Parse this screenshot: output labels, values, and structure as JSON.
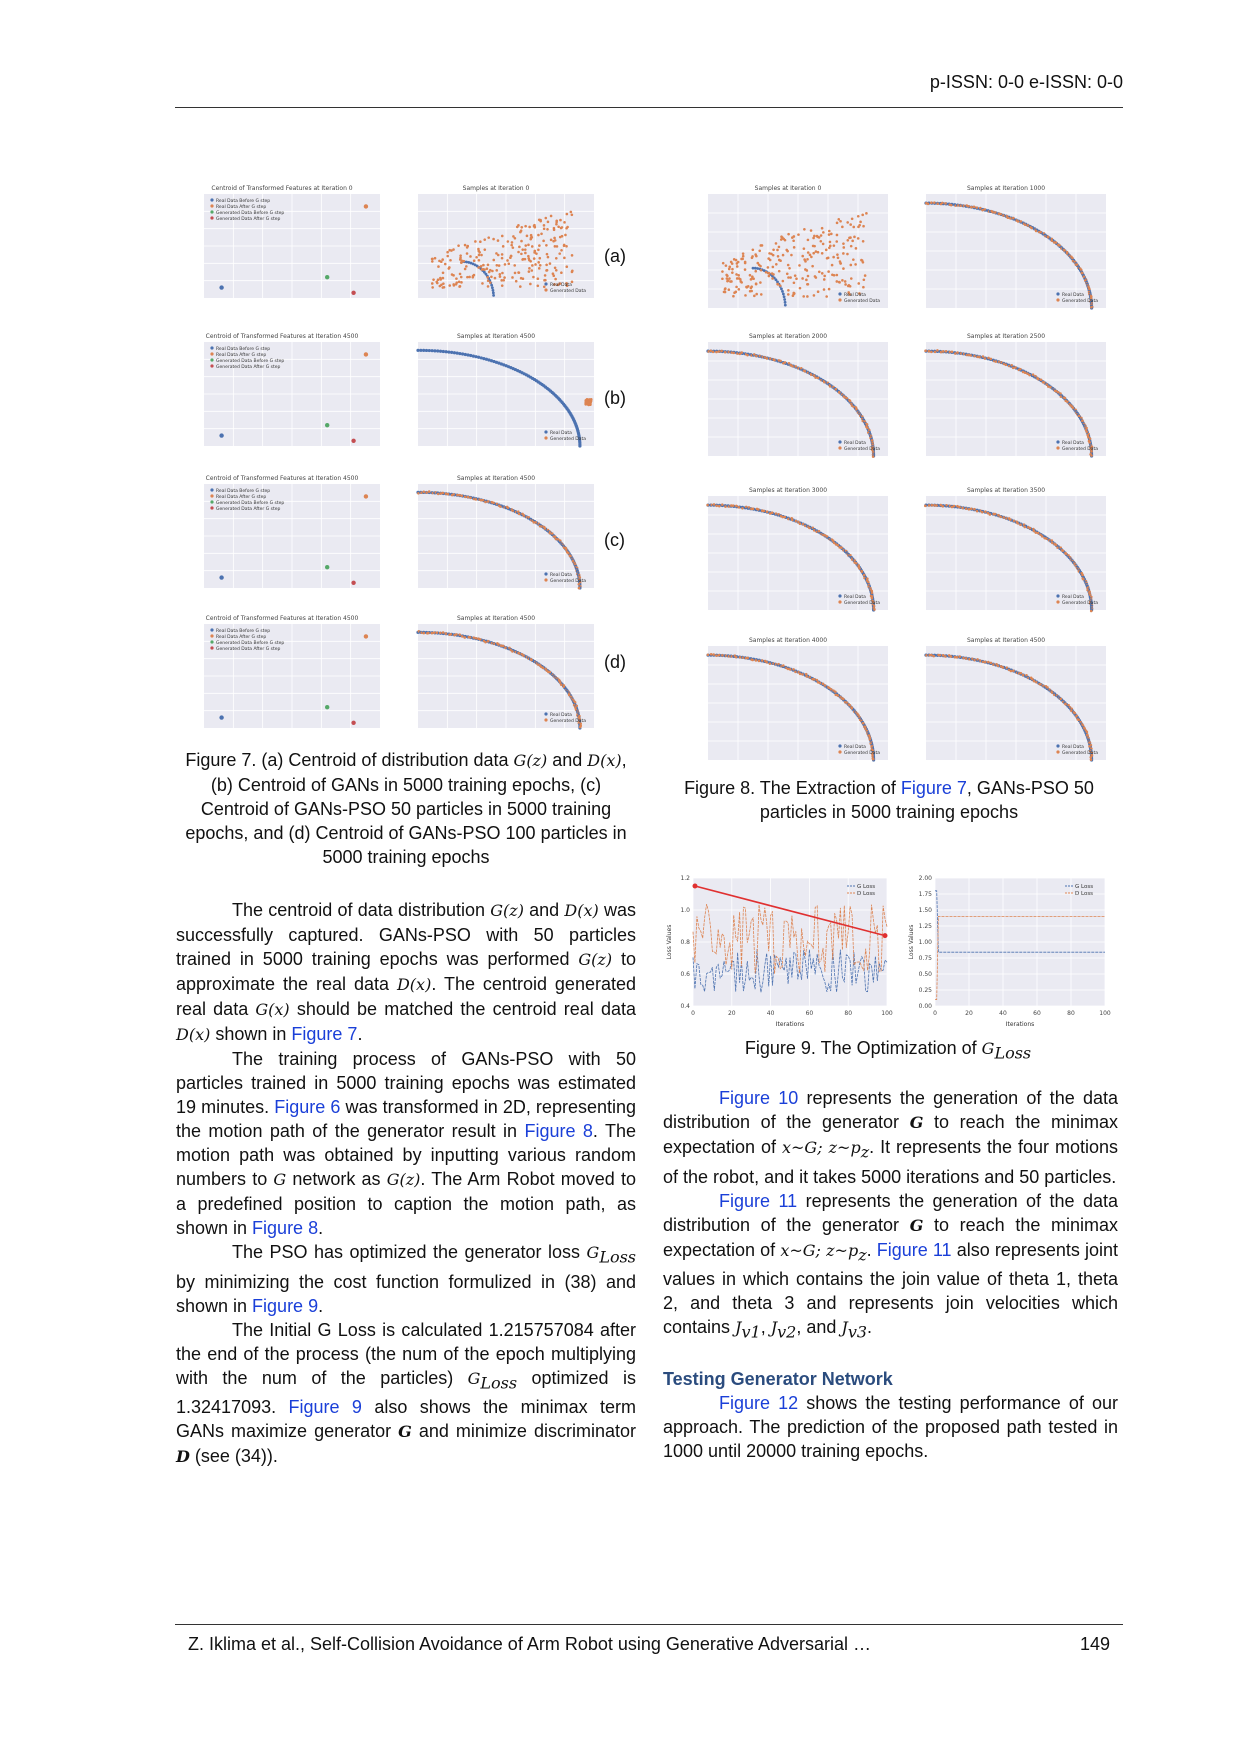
{
  "header": {
    "issn": "p-ISSN: 0-0 e-ISSN: 0-0"
  },
  "footer": {
    "citation": "Z. Iklima et al., Self-Collision Avoidance of Arm Robot using Generative Adversarial …",
    "page": "149"
  },
  "figure7": {
    "sublabels": [
      "(a)",
      "(b)",
      "(c)",
      "(d)"
    ],
    "panel_titles": [
      "Centroid of Transformed Features at Iteration 0",
      "Samples at Iteration 0",
      "Centroid of Transformed Features at Iteration 4500",
      "Samples at Iteration 4500",
      "Centroid of Transformed Features at Iteration 4500",
      "Samples at Iteration 4500",
      "Centroid of Transformed Features at Iteration 4500",
      "Samples at Iteration 4500"
    ],
    "centroid_legend": [
      "Real Data Before G step",
      "Real Data After G step",
      "Generated Data Before G step",
      "Generated Data After G step"
    ],
    "samples_legend": [
      "Real Data",
      "Generated Data"
    ],
    "caption_pre": "Figure 7. (a) Centroid of distribution data ",
    "caption_gz": "G(z)",
    "caption_and": " and ",
    "caption_dx": "D(x)",
    "caption_post": ", (b) Centroid of GANs in 5000 training epochs, (c) Centroid of GANs-PSO 50 particles in 5000 training epochs, and (d) Centroid of GANs-PSO 100 particles in 5000 training epochs"
  },
  "figure8": {
    "panel_titles": [
      "Samples at Iteration 0",
      "Samples at Iteration 1000",
      "Samples at Iteration 2000",
      "Samples at Iteration 2500",
      "Samples at Iteration 3000",
      "Samples at Iteration 3500",
      "Samples at Iteration 4000",
      "Samples at Iteration 4500"
    ],
    "legend": [
      "Real Data",
      "Generated Data"
    ],
    "caption_pre": "Figure 8. The Extraction of ",
    "caption_link": "Figure 7",
    "caption_post": ", GANs-PSO 50 particles in 5000 training epochs"
  },
  "figure9": {
    "left": {
      "ylabel": "Loss Values",
      "xlabel": "Iterations",
      "legend": [
        "G Loss",
        "D Loss"
      ],
      "yticks": [
        "1.2",
        "1.0",
        "0.8",
        "0.6",
        "0.4"
      ],
      "xticks": [
        "0",
        "20",
        "40",
        "60",
        "80",
        "100"
      ]
    },
    "right": {
      "ylabel": "Loss Values",
      "xlabel": "Iterations",
      "legend": [
        "G Loss",
        "D Loss"
      ],
      "yticks": [
        "2.00",
        "1.75",
        "1.50",
        "1.25",
        "1.00",
        "0.75",
        "0.50",
        "0.25",
        "0.00"
      ],
      "xticks": [
        "0",
        "20",
        "40",
        "60",
        "80",
        "100"
      ]
    },
    "caption_pre": "Figure 9. The Optimization of ",
    "caption_math": "G",
    "caption_sub": "Loss"
  },
  "left_col": {
    "p1": {
      "t1": "The centroid of data distribution ",
      "m1": "G(z)",
      "t2": " and ",
      "m2": "D(x)",
      "t3": " was successfully captured. GANs-PSO with 50 particles trained in 5000 training epochs was performed ",
      "m3": "G(z)",
      "t4": " to approximate the real data ",
      "m4": "D(x)",
      "t5": ". The centroid generated real data ",
      "m5": "G(x)",
      "t6": " should be matched the centroid real data ",
      "m6": "D(x)",
      "t7": " shown in ",
      "link": "Figure 7",
      "t8": "."
    },
    "p2": {
      "t1": "The training process of GANs-PSO with 50 particles trained in 5000 training epochs was estimated 19 minutes. ",
      "link1": "Figure 6",
      "t2": " was transformed in 2D, representing the motion path of the generator result in ",
      "link2": "Figure 8",
      "t3": ". The motion path was obtained by inputting various random numbers to ",
      "m1": "G",
      "t4": " network as ",
      "m2": "G(z)",
      "t5": ". The Arm Robot moved to a predefined position to caption the motion path, as shown in ",
      "link3": "Figure 8",
      "t6": "."
    },
    "p3": {
      "t1": "The PSO has optimized the generator loss ",
      "m1": "G",
      "m1sub": "Loss",
      "t2": " by minimizing the cost function formulized in (38) and shown in ",
      "link": "Figure 9",
      "t3": "."
    },
    "p4": {
      "t1": "The Initial G Loss is calculated 1.215757084 after the end of the process (the num of the epoch multiplying with the num of the particles) ",
      "m1": "G",
      "m1sub": "Loss",
      "t2": " optimized is 1.32417093. ",
      "link": "Figure 9",
      "t3": " also shows the minimax term GANs maximize generator ",
      "b1": "G",
      "t4": " and minimize discriminator ",
      "b2": "D",
      "t5": " (see (34))."
    }
  },
  "right_col": {
    "p1": {
      "link": "Figure 10",
      "t1": " represents the generation of the data distribution of the generator ",
      "b1": "G",
      "t2": " to reach the minimax expectation of ",
      "m1": "x~G; z~p",
      "m1sub": "z",
      "t3": ". It represents the four motions of the robot, and it takes 5000 iterations and 50 particles."
    },
    "p2": {
      "link1": "Figure 11",
      "t1": " represents the generation of the data distribution of the generator ",
      "b1": "G",
      "t2": " to reach the minimax expectation of ",
      "m1": "x~G; z~p",
      "m1sub": "z",
      "t3": ". ",
      "link2": "Figure 11",
      "t4": " also represents joint values in which contains the join value of theta 1, theta 2, and theta 3 and represents join velocities which contains ",
      "m2": "J",
      "m2sub": "v1",
      "t5": ", ",
      "m3": "J",
      "m3sub": "v2",
      "t6": ", and ",
      "m4": "J",
      "m4sub": "v3",
      "t7": "."
    },
    "section": "Testing Generator Network",
    "p3": {
      "link": "Figure 12",
      "t1": " shows the testing performance of our approach. The prediction of the proposed path tested in 1000 until 20000 training epochs."
    }
  },
  "colors": {
    "real": "#4c72b0",
    "generated": "#dd8452",
    "grid_bg": "#eaeaf2",
    "link": "#1a3fd8",
    "section": "#2b4c7e",
    "loss_line": "#e03030"
  }
}
